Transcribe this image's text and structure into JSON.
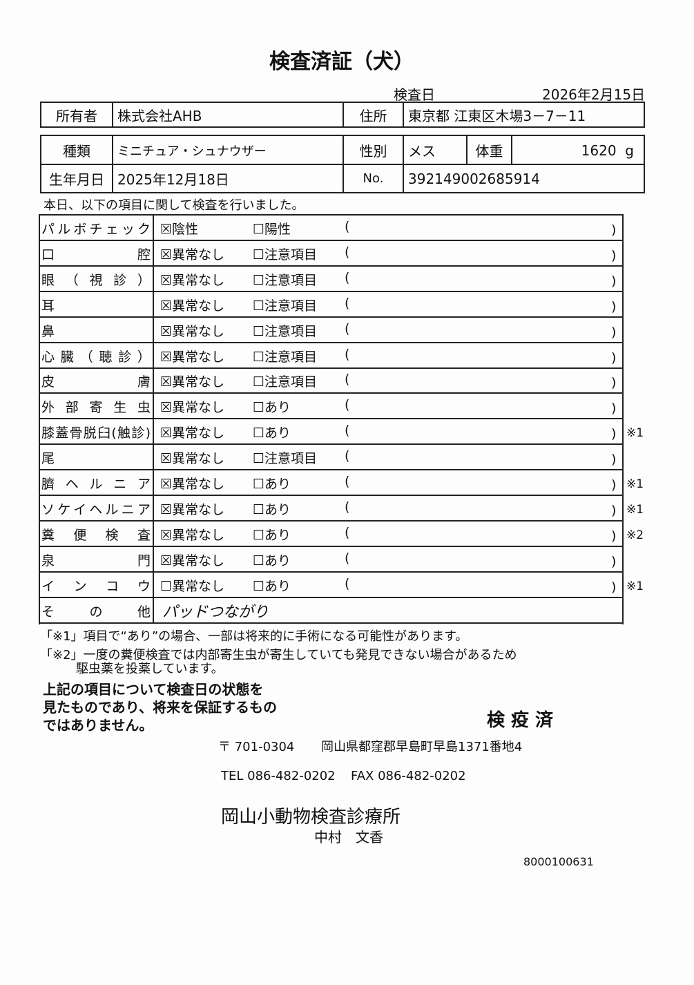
{
  "title": "検査済証（犬）",
  "exam_date_label": "検査日",
  "exam_date": "2026年2月15日",
  "owner_label": "所有者",
  "owner": "株式会社AHB",
  "address_label": "住所",
  "address": "東京都 江東区木場3－7－11",
  "breed_label": "種類",
  "breed": "ミニチュア・シュナウザー",
  "sex_label": "性別",
  "sex": "メス",
  "weight_label": "体重",
  "weight": "1620",
  "weight_unit": "g",
  "birth_label": "生年月日",
  "birth": "2025年12月18日",
  "no_label": "No.",
  "no": "392149002685914",
  "intro": "本日、以下の項目に関して検査を行いました。",
  "paren_open": "(",
  "paren_close": ")",
  "rows": [
    {
      "label": "パルボチェック",
      "opt1": "陰性",
      "opt1_checked": true,
      "opt2": "陽性",
      "opt2_checked": false,
      "note": ""
    },
    {
      "label": "口腔",
      "opt1": "異常なし",
      "opt1_checked": true,
      "opt2": "注意項目",
      "opt2_checked": false,
      "note": ""
    },
    {
      "label": "眼（視診）",
      "opt1": "異常なし",
      "opt1_checked": true,
      "opt2": "注意項目",
      "opt2_checked": false,
      "note": ""
    },
    {
      "label": "耳",
      "opt1": "異常なし",
      "opt1_checked": true,
      "opt2": "注意項目",
      "opt2_checked": false,
      "note": ""
    },
    {
      "label": "鼻",
      "opt1": "異常なし",
      "opt1_checked": true,
      "opt2": "注意項目",
      "opt2_checked": false,
      "note": ""
    },
    {
      "label": "心臓（聴診）",
      "opt1": "異常なし",
      "opt1_checked": true,
      "opt2": "注意項目",
      "opt2_checked": false,
      "note": ""
    },
    {
      "label": "皮膚",
      "opt1": "異常なし",
      "opt1_checked": true,
      "opt2": "注意項目",
      "opt2_checked": false,
      "note": ""
    },
    {
      "label": "外部寄生虫",
      "opt1": "異常なし",
      "opt1_checked": true,
      "opt2": "あり",
      "opt2_checked": false,
      "note": ""
    },
    {
      "label": "膝蓋骨脱臼(触診)",
      "opt1": "異常なし",
      "opt1_checked": true,
      "opt2": "あり",
      "opt2_checked": false,
      "note": "※1"
    },
    {
      "label": "尾",
      "opt1": "異常なし",
      "opt1_checked": true,
      "opt2": "注意項目",
      "opt2_checked": false,
      "note": ""
    },
    {
      "label": "臍ヘルニア",
      "opt1": "異常なし",
      "opt1_checked": true,
      "opt2": "あり",
      "opt2_checked": false,
      "note": "※1"
    },
    {
      "label": "ソケイヘルニア",
      "opt1": "異常なし",
      "opt1_checked": true,
      "opt2": "あり",
      "opt2_checked": false,
      "note": "※1"
    },
    {
      "label": "糞便検査",
      "opt1": "異常なし",
      "opt1_checked": true,
      "opt2": "あり",
      "opt2_checked": false,
      "note": "※2"
    },
    {
      "label": "泉門",
      "opt1": "異常なし",
      "opt1_checked": true,
      "opt2": "あり",
      "opt2_checked": false,
      "note": ""
    },
    {
      "label": "インコウ",
      "opt1": "異常なし",
      "opt1_checked": false,
      "opt2": "あり",
      "opt2_checked": false,
      "note": "※1"
    }
  ],
  "other_label": "その他",
  "other_value": "パッドつながり",
  "footnote1": "「※1」項目で“あり”の場合、一部は将来的に手術になる可能性があります。",
  "footnote2a": "「※2」一度の糞便検査では内部寄生虫が寄生していても発見できない場合があるため",
  "footnote2b": "駆虫薬を投薬しています。",
  "disclaimer": [
    "上記の項目について検査日の状態を",
    "見たものであり、将来を保証するもの",
    "ではありません。"
  ],
  "stamp": "検 疫 済",
  "postal": "〒 701-0304",
  "clinic_address": "岡山県都窪郡早島町早島1371番地4",
  "tel": "TEL 086-482-0202",
  "fax": "FAX 086-482-0202",
  "clinic_name": "岡山小動物検査診療所",
  "vet_name": "中村　文香",
  "doc_number": "8000100631"
}
